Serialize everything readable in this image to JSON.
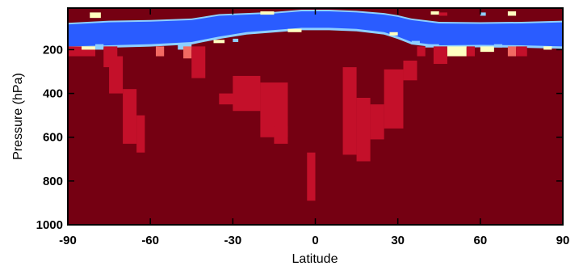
{
  "chart_data": {
    "type": "heatmap",
    "title": "",
    "xlabel": "Latitude",
    "ylabel": "Pressure (hPa)",
    "xlim": [
      -90,
      90
    ],
    "ylim": [
      1000,
      10
    ],
    "x_ticks": [
      -90,
      -60,
      -30,
      0,
      30,
      60,
      90
    ],
    "y_ticks": [
      200,
      400,
      600,
      800,
      1000
    ],
    "colors": {
      "background": "#750012",
      "band": "#2a5cff",
      "band_edge": "#8fd0ff",
      "light_yellow": "#ffffc0",
      "salmon": "#f26a62",
      "crimson": "#c4102a"
    },
    "tropopause_band": {
      "latitude": [
        -90,
        -75,
        -60,
        -45,
        -35,
        -25,
        -15,
        -5,
        0,
        5,
        15,
        25,
        30,
        35,
        45,
        60,
        75,
        90
      ],
      "top_hPa": [
        85,
        75,
        72,
        65,
        45,
        40,
        35,
        25,
        25,
        25,
        30,
        40,
        50,
        65,
        80,
        82,
        80,
        75
      ],
      "bottom_hPa": [
        185,
        180,
        175,
        165,
        140,
        120,
        110,
        100,
        100,
        100,
        105,
        120,
        140,
        165,
        180,
        178,
        180,
        185
      ]
    },
    "crimson_regions": [
      {
        "lat": [
          -75,
          -70
        ],
        "p": [
          230,
          400
        ]
      },
      {
        "lat": [
          -70,
          -65
        ],
        "p": [
          380,
          630
        ]
      },
      {
        "lat": [
          -65,
          -62
        ],
        "p": [
          500,
          670
        ]
      },
      {
        "lat": [
          -35,
          -25
        ],
        "p": [
          400,
          450
        ]
      },
      {
        "lat": [
          -30,
          -20
        ],
        "p": [
          320,
          480
        ]
      },
      {
        "lat": [
          -20,
          -10
        ],
        "p": [
          350,
          600
        ]
      },
      {
        "lat": [
          -15,
          -10
        ],
        "p": [
          550,
          630
        ]
      },
      {
        "lat": [
          -3,
          0
        ],
        "p": [
          670,
          890
        ]
      },
      {
        "lat": [
          10,
          15
        ],
        "p": [
          280,
          680
        ]
      },
      {
        "lat": [
          15,
          20
        ],
        "p": [
          420,
          710
        ]
      },
      {
        "lat": [
          20,
          25
        ],
        "p": [
          450,
          610
        ]
      },
      {
        "lat": [
          25,
          32
        ],
        "p": [
          290,
          560
        ]
      },
      {
        "lat": [
          32,
          37
        ],
        "p": [
          250,
          340
        ]
      }
    ],
    "surface_speckles": [
      {
        "lat": [
          -90,
          -80
        ],
        "p": [
          185,
          230
        ],
        "color": "crimson"
      },
      {
        "lat": [
          -85,
          -80
        ],
        "p": [
          185,
          200
        ],
        "color": "light_yellow"
      },
      {
        "lat": [
          -80,
          -77
        ],
        "p": [
          175,
          200
        ],
        "color": "band_edge"
      },
      {
        "lat": [
          -77,
          -72
        ],
        "p": [
          185,
          280
        ],
        "color": "crimson"
      },
      {
        "lat": [
          -58,
          -55
        ],
        "p": [
          185,
          230
        ],
        "color": "salmon"
      },
      {
        "lat": [
          -50,
          -45
        ],
        "p": [
          175,
          200
        ],
        "color": "band_edge"
      },
      {
        "lat": [
          -48,
          -45
        ],
        "p": [
          185,
          240
        ],
        "color": "salmon"
      },
      {
        "lat": [
          -45,
          -40
        ],
        "p": [
          185,
          330
        ],
        "color": "crimson"
      },
      {
        "lat": [
          -37,
          -33
        ],
        "p": [
          155,
          170
        ],
        "color": "light_yellow"
      },
      {
        "lat": [
          -30,
          -28
        ],
        "p": [
          150,
          165
        ],
        "color": "band_edge"
      },
      {
        "lat": [
          -10,
          -5
        ],
        "p": [
          105,
          120
        ],
        "color": "light_yellow"
      },
      {
        "lat": [
          27,
          30
        ],
        "p": [
          120,
          135
        ],
        "color": "light_yellow"
      },
      {
        "lat": [
          35,
          38
        ],
        "p": [
          160,
          175
        ],
        "color": "band_edge"
      },
      {
        "lat": [
          37,
          40
        ],
        "p": [
          185,
          230
        ],
        "color": "crimson"
      },
      {
        "lat": [
          40,
          45
        ],
        "p": [
          175,
          190
        ],
        "color": "band_edge"
      },
      {
        "lat": [
          43,
          48
        ],
        "p": [
          185,
          265
        ],
        "color": "crimson"
      },
      {
        "lat": [
          48,
          55
        ],
        "p": [
          185,
          230
        ],
        "color": "light_yellow"
      },
      {
        "lat": [
          55,
          58
        ],
        "p": [
          185,
          230
        ],
        "color": "crimson"
      },
      {
        "lat": [
          60,
          65
        ],
        "p": [
          185,
          210
        ],
        "color": "light_yellow"
      },
      {
        "lat": [
          65,
          68
        ],
        "p": [
          175,
          190
        ],
        "color": "band_edge"
      },
      {
        "lat": [
          70,
          73
        ],
        "p": [
          185,
          230
        ],
        "color": "salmon"
      },
      {
        "lat": [
          73,
          77
        ],
        "p": [
          185,
          230
        ],
        "color": "crimson"
      },
      {
        "lat": [
          83,
          86
        ],
        "p": [
          185,
          200
        ],
        "color": "light_yellow"
      },
      {
        "lat": [
          -82,
          -78
        ],
        "p": [
          30,
          55
        ],
        "color": "light_yellow"
      },
      {
        "lat": [
          -20,
          -15
        ],
        "p": [
          25,
          40
        ],
        "color": "light_yellow"
      },
      {
        "lat": [
          42,
          45
        ],
        "p": [
          25,
          40
        ],
        "color": "light_yellow"
      },
      {
        "lat": [
          45,
          48
        ],
        "p": [
          30,
          45
        ],
        "color": "crimson"
      },
      {
        "lat": [
          60,
          62
        ],
        "p": [
          30,
          45
        ],
        "color": "band_edge"
      },
      {
        "lat": [
          70,
          73
        ],
        "p": [
          25,
          45
        ],
        "color": "light_yellow"
      }
    ]
  }
}
